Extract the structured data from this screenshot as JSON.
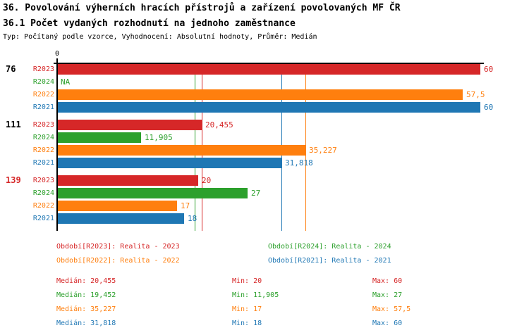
{
  "header": {
    "title": "36. Povolování výherních hracích přístrojů a zařízení povolovaných MF ČR",
    "subtitle": "36.1 Počet vydaných rozhodnutí na jednoho zaměstnance",
    "meta": "Typ: Počítaný podle vzorce, Vyhodnocení: Absolutní hodnoty, Průměr: Medián"
  },
  "palette": {
    "R2023": "#d62728",
    "R2024": "#2ca02c",
    "R2022": "#ff7f0e",
    "R2021": "#1f77b4",
    "axis": "#000000"
  },
  "chart_data": {
    "type": "bar",
    "orientation": "horizontal",
    "title": "36.1 Počet vydaných rozhodnutí na jednoho zaměstnance",
    "xlim": [
      0,
      60
    ],
    "tick_labels": [
      "0"
    ],
    "grid": false,
    "categories": [
      "76",
      "111",
      "139"
    ],
    "category_label_colors": [
      "#000000",
      "#000000",
      "#d62728"
    ],
    "series": [
      {
        "name": "R2023",
        "color": "#d62728",
        "values": [
          60,
          20.455,
          20
        ],
        "displays": [
          "60",
          "20,455",
          "20"
        ],
        "median": 20.455
      },
      {
        "name": "R2024",
        "color": "#2ca02c",
        "values": [
          null,
          11.905,
          27
        ],
        "displays": [
          "NA",
          "11,905",
          "27"
        ],
        "median": 19.452
      },
      {
        "name": "R2022",
        "color": "#ff7f0e",
        "values": [
          57.5,
          35.227,
          17
        ],
        "displays": [
          "57,5",
          "35,227",
          "17"
        ],
        "median": 35.227
      },
      {
        "name": "R2021",
        "color": "#1f77b4",
        "values": [
          60,
          31.818,
          18
        ],
        "displays": [
          "60",
          "31,818",
          "18"
        ],
        "median": 31.818
      }
    ]
  },
  "legend": [
    {
      "text": "Období[R2023]: Realita - 2023",
      "color": "#d62728"
    },
    {
      "text": "Období[R2024]: Realita - 2024",
      "color": "#2ca02c"
    },
    {
      "text": "Období[R2022]: Realita - 2022",
      "color": "#ff7f0e"
    },
    {
      "text": "Období[R2021]: Realita - 2021",
      "color": "#1f77b4"
    }
  ],
  "stats": [
    {
      "median": "Medián: 20,455",
      "min": "Min: 20",
      "max": "Max: 60",
      "color": "#d62728"
    },
    {
      "median": "Medián: 19,452",
      "min": "Min: 11,905",
      "max": "Max: 27",
      "color": "#2ca02c"
    },
    {
      "median": "Medián: 35,227",
      "min": "Min: 17",
      "max": "Max: 57,5",
      "color": "#ff7f0e"
    },
    {
      "median": "Medián: 31,818",
      "min": "Min: 18",
      "max": "Max: 60",
      "color": "#1f77b4"
    }
  ]
}
